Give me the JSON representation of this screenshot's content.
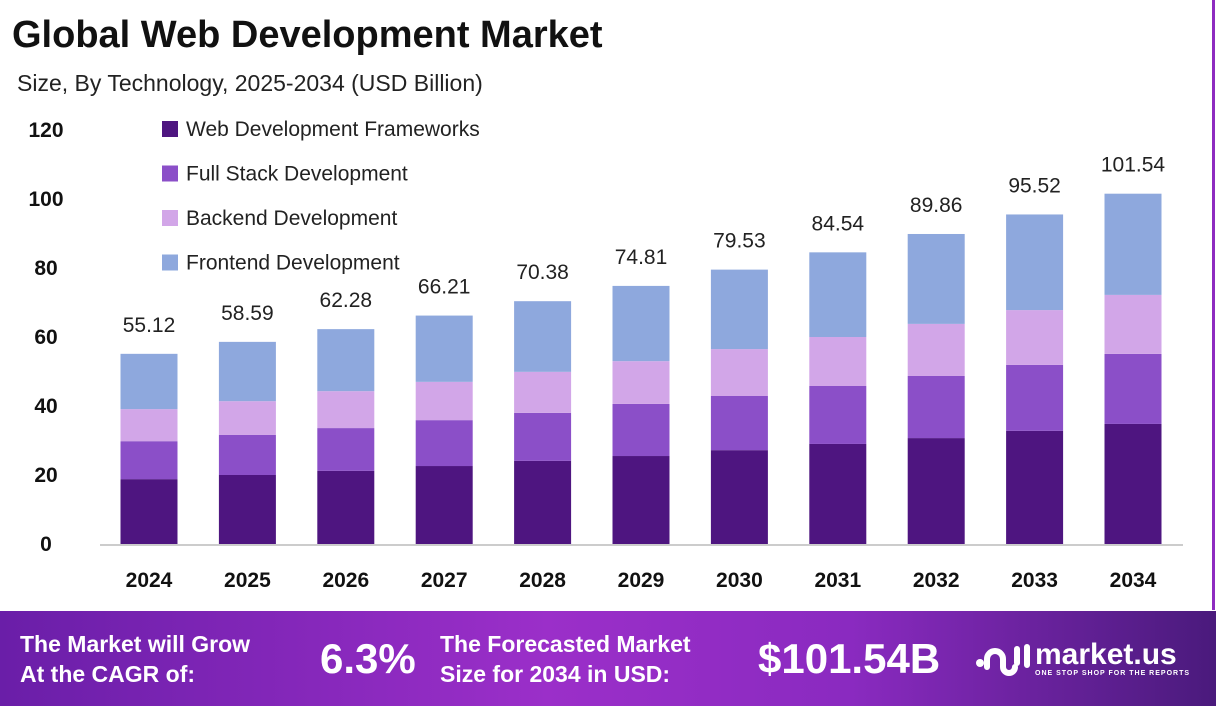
{
  "chart_data": {
    "type": "bar",
    "stacked": true,
    "title": "Global Web Development Market",
    "subtitle": "Size, By Technology, 2025-2034 (USD Billion)",
    "xlabel": "",
    "ylabel": "",
    "ylim": [
      0,
      120
    ],
    "yticks": [
      0,
      20,
      40,
      60,
      80,
      100,
      120
    ],
    "grid": false,
    "legend_position": "top-left",
    "categories": [
      "2024",
      "2025",
      "2026",
      "2027",
      "2028",
      "2029",
      "2030",
      "2031",
      "2032",
      "2033",
      "2034"
    ],
    "totals": [
      "55.12",
      "58.59",
      "62.28",
      "66.21",
      "70.38",
      "74.81",
      "79.53",
      "84.54",
      "89.86",
      "95.52",
      "101.54"
    ],
    "series": [
      {
        "name": "Web Development Frameworks",
        "color": "#4e1580",
        "values": [
          18.8,
          20.0,
          21.2,
          22.6,
          24.1,
          25.5,
          27.2,
          29.0,
          30.7,
          32.8,
          34.8
        ]
      },
      {
        "name": "Full Stack Development",
        "color": "#8b4fc8",
        "values": [
          11.0,
          11.6,
          12.4,
          13.3,
          13.9,
          15.1,
          15.7,
          16.8,
          18.0,
          19.1,
          20.3
        ]
      },
      {
        "name": "Backend Development",
        "color": "#d2a6e8",
        "values": [
          9.3,
          9.8,
          10.7,
          11.1,
          11.9,
          12.4,
          13.6,
          14.2,
          15.1,
          15.9,
          17.1
        ]
      },
      {
        "name": "Frontend Development",
        "color": "#8ea8dd",
        "values": [
          16.02,
          17.19,
          17.98,
          19.21,
          20.48,
          21.81,
          23.03,
          24.54,
          26.06,
          27.72,
          29.34
        ]
      }
    ]
  },
  "footer": {
    "cagr_label_1": "The Market will Grow",
    "cagr_label_2": "At the CAGR of:",
    "cagr_value": "6.3%",
    "size_label_1": "The Forecasted Market",
    "size_label_2": "Size for 2034 in USD:",
    "size_value": "$101.54B",
    "logo_text": "market.us",
    "logo_tagline": "ONE STOP SHOP FOR THE REPORTS"
  }
}
